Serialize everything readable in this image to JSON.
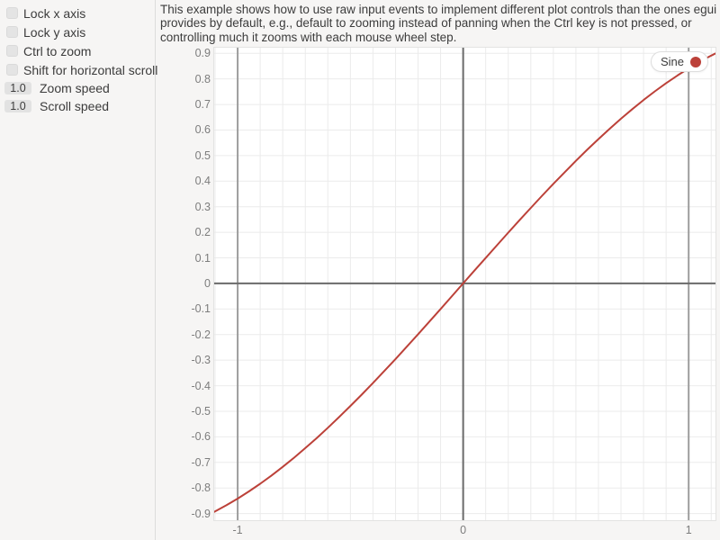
{
  "sidebar": {
    "checkboxes": [
      {
        "label": "Lock x axis",
        "checked": false
      },
      {
        "label": "Lock y axis",
        "checked": false
      },
      {
        "label": "Ctrl to zoom",
        "checked": false
      },
      {
        "label": "Shift for horizontal scroll",
        "checked": false
      }
    ],
    "drag_values": [
      {
        "value": "1.0",
        "label": "Zoom speed"
      },
      {
        "value": "1.0",
        "label": "Scroll speed"
      }
    ]
  },
  "description": {
    "lines": [
      "This example shows how to use raw input events to implement different plot controls than the ones egui",
      "provides by default, e.g., default to zooming instead of panning when the Ctrl key is not pressed, or",
      "controlling much it zooms with each mouse wheel step."
    ]
  },
  "chart_data": {
    "type": "line",
    "title": "",
    "xlabel": "",
    "ylabel": "",
    "grid": true,
    "xlim": [
      -1.104,
      1.119
    ],
    "ylim": [
      -0.926,
      0.922
    ],
    "minor_step": 0.1,
    "legend": {
      "label": "Sine",
      "position": "right-top"
    },
    "x_ticks": [
      {
        "v": -1,
        "label": "-1"
      },
      {
        "v": 0,
        "label": "0"
      },
      {
        "v": 1,
        "label": "1"
      }
    ],
    "y_ticks": [
      {
        "v": 0.9,
        "label": "0.9"
      },
      {
        "v": 0.8,
        "label": "0.8"
      },
      {
        "v": 0.7,
        "label": "0.7"
      },
      {
        "v": 0.6,
        "label": "0.6"
      },
      {
        "v": 0.5,
        "label": "0.5"
      },
      {
        "v": 0.4,
        "label": "0.4"
      },
      {
        "v": 0.3,
        "label": "0.3"
      },
      {
        "v": 0.2,
        "label": "0.2"
      },
      {
        "v": 0.1,
        "label": "0.1"
      },
      {
        "v": 0,
        "label": "0"
      },
      {
        "v": -0.1,
        "label": "-0.1"
      },
      {
        "v": -0.2,
        "label": "-0.2"
      },
      {
        "v": -0.3,
        "label": "-0.3"
      },
      {
        "v": -0.4,
        "label": "-0.4"
      },
      {
        "v": -0.5,
        "label": "-0.5"
      },
      {
        "v": -0.6,
        "label": "-0.6"
      },
      {
        "v": -0.7,
        "label": "-0.7"
      },
      {
        "v": -0.8,
        "label": "-0.8"
      },
      {
        "v": -0.9,
        "label": "-0.9"
      }
    ],
    "major_x_lines": [
      -1,
      0,
      1
    ],
    "major_y_lines": [
      0
    ],
    "colors": {
      "series": "#bc4139",
      "grid_minor": "#ebebeb",
      "grid_major_axis": "#6a6a6a",
      "grid_major_unit": "#9e9e9e",
      "plot_bg": "#ffffff",
      "page_bg": "#f6f5f4",
      "tick_text": "#7d7d7d"
    },
    "series": [
      {
        "name": "Sine",
        "color": "#bc4139",
        "x": [
          -1.104,
          -1.05,
          -1.0,
          -0.95,
          -0.9,
          -0.85,
          -0.8,
          -0.75,
          -0.7,
          -0.65,
          -0.6,
          -0.55,
          -0.5,
          -0.45,
          -0.4,
          -0.35,
          -0.3,
          -0.25,
          -0.2,
          -0.15,
          -0.1,
          -0.05,
          0,
          0.05,
          0.1,
          0.15,
          0.2,
          0.25,
          0.3,
          0.35,
          0.4,
          0.45,
          0.5,
          0.55,
          0.6,
          0.65,
          0.7,
          0.75,
          0.8,
          0.85,
          0.9,
          0.95,
          1.0,
          1.05,
          1.1,
          1.119
        ],
        "y": [
          -0.8932,
          -0.8674,
          -0.8415,
          -0.8134,
          -0.7833,
          -0.7513,
          -0.7174,
          -0.6816,
          -0.6442,
          -0.6052,
          -0.5646,
          -0.5227,
          -0.4794,
          -0.435,
          -0.3894,
          -0.3429,
          -0.2955,
          -0.2474,
          -0.1987,
          -0.1494,
          -0.0998,
          -0.05,
          0,
          0.05,
          0.0998,
          0.1494,
          0.1987,
          0.2474,
          0.2955,
          0.3429,
          0.3894,
          0.435,
          0.4794,
          0.5227,
          0.5646,
          0.6052,
          0.6442,
          0.6816,
          0.7174,
          0.7513,
          0.7833,
          0.8134,
          0.8415,
          0.8674,
          0.8912,
          0.8996
        ]
      }
    ]
  }
}
